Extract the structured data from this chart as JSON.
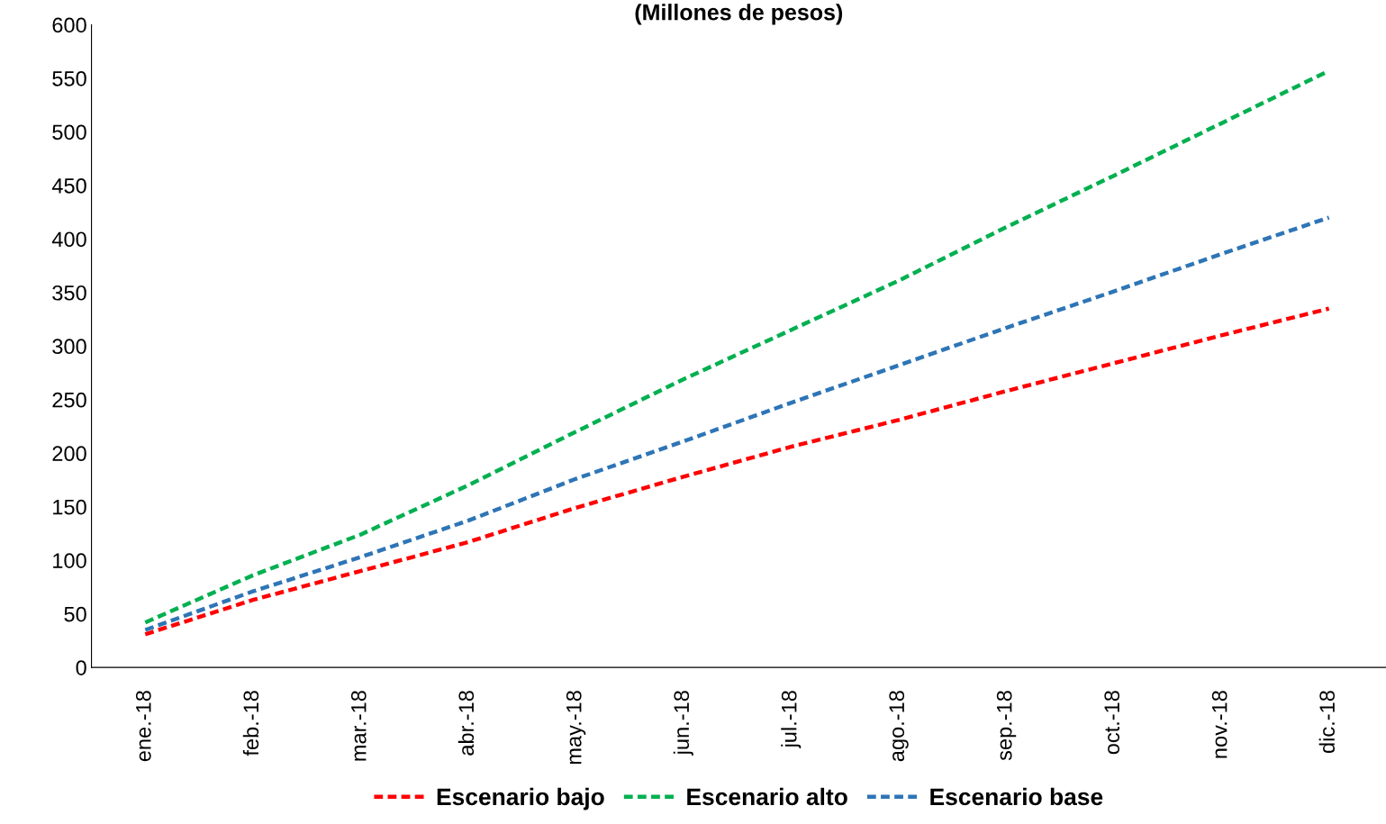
{
  "chart_data": {
    "type": "line",
    "title": "(Millones de pesos)",
    "categories": [
      "ene.-18",
      "feb.-18",
      "mar.-18",
      "abr.-18",
      "may.-18",
      "jun.-18",
      "jul.-18",
      "ago.-18",
      "sep.-18",
      "oct.-18",
      "nov.-18",
      "dic.-18"
    ],
    "series": [
      {
        "name": "Escenario bajo",
        "color": "#ff0000",
        "values": [
          31,
          63,
          90,
          117,
          149,
          178,
          206,
          231,
          258,
          284,
          310,
          335
        ]
      },
      {
        "name": "Escenario alto",
        "color": "#00b050",
        "values": [
          42,
          86,
          124,
          170,
          220,
          269,
          315,
          361,
          411,
          459,
          508,
          557
        ]
      },
      {
        "name": "Escenario base",
        "color": "#2e75b6",
        "values": [
          35,
          71,
          103,
          137,
          176,
          211,
          247,
          282,
          317,
          351,
          386,
          420
        ]
      }
    ],
    "ylim": [
      0,
      600
    ],
    "yticks": [
      0,
      50,
      100,
      150,
      200,
      250,
      300,
      350,
      400,
      450,
      500,
      550,
      600
    ],
    "grid": false,
    "legend": "bottom",
    "line_style": "dashed",
    "marker": "none"
  }
}
